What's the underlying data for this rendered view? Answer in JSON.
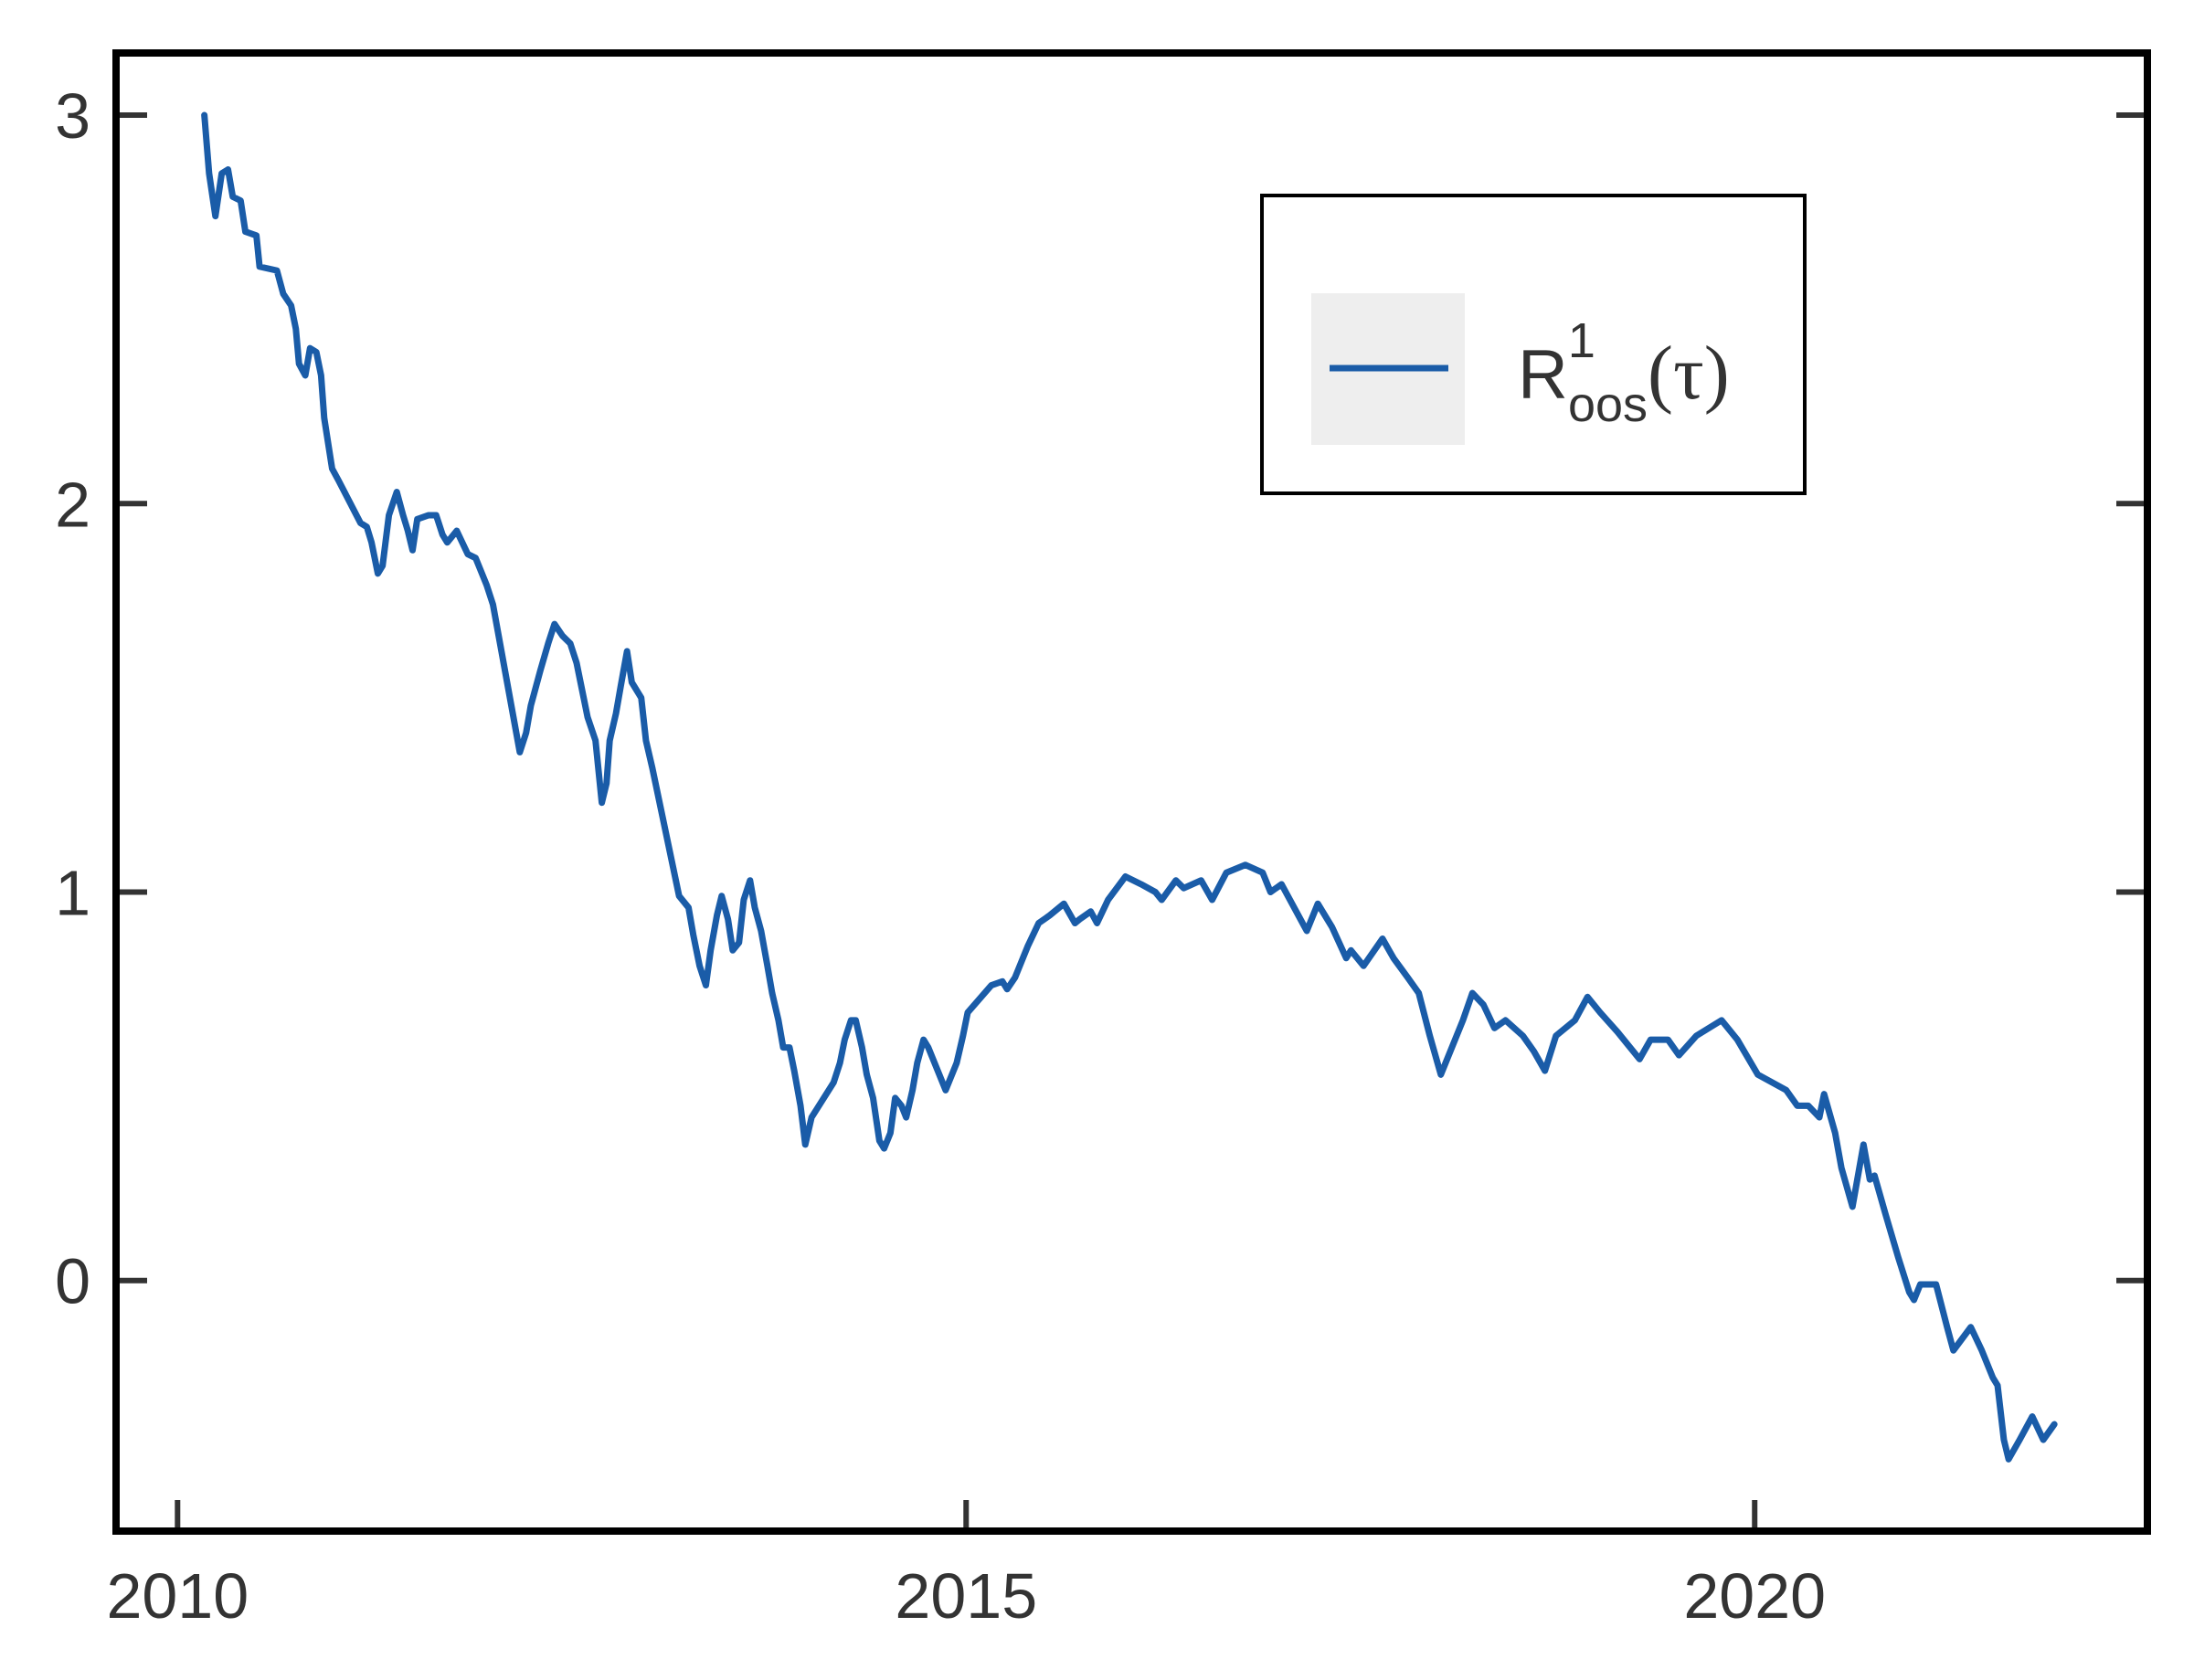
{
  "chart_data": {
    "type": "line",
    "x": [
      2010.17,
      2010.2,
      2010.24,
      2010.28,
      2010.32,
      2010.35,
      2010.4,
      2010.43,
      2010.5,
      2010.52,
      2010.63,
      2010.67,
      2010.72,
      2010.75,
      2010.77,
      2010.81,
      2010.84,
      2010.88,
      2010.91,
      2010.93,
      2010.98,
      2011.02,
      2011.16,
      2011.2,
      2011.23,
      2011.27,
      2011.3,
      2011.34,
      2011.39,
      2011.43,
      2011.46,
      2011.49,
      2011.52,
      2011.59,
      2011.64,
      2011.68,
      2011.71,
      2011.77,
      2011.84,
      2011.89,
      2011.93,
      2011.96,
      2012.0,
      2012.17,
      2012.21,
      2012.24,
      2012.3,
      2012.35,
      2012.39,
      2012.44,
      2012.49,
      2012.53,
      2012.56,
      2012.6,
      2012.65,
      2012.69,
      2012.72,
      2012.74,
      2012.78,
      2012.81,
      2012.85,
      2012.88,
      2012.94,
      2012.97,
      2013.01,
      2013.18,
      2013.24,
      2013.27,
      2013.31,
      2013.35,
      2013.38,
      2013.42,
      2013.45,
      2013.49,
      2013.52,
      2013.56,
      2013.59,
      2013.63,
      2013.66,
      2013.7,
      2013.74,
      2013.77,
      2013.81,
      2013.84,
      2013.88,
      2013.91,
      2013.95,
      2013.98,
      2014.02,
      2014.16,
      2014.2,
      2014.23,
      2014.27,
      2014.3,
      2014.34,
      2014.37,
      2014.41,
      2014.45,
      2014.48,
      2014.52,
      2014.55,
      2014.59,
      2014.62,
      2014.66,
      2014.69,
      2014.73,
      2014.76,
      2014.83,
      2014.87,
      2014.91,
      2014.94,
      2014.98,
      2015.01,
      2015.16,
      2015.23,
      2015.26,
      2015.31,
      2015.39,
      2015.46,
      2015.53,
      2015.62,
      2015.69,
      2015.72,
      2015.79,
      2015.83,
      2015.9,
      2016.01,
      2016.11,
      2016.2,
      2016.24,
      2016.33,
      2016.38,
      2016.49,
      2016.56,
      2016.65,
      2016.77,
      2016.88,
      2016.93,
      2017.0,
      2017.16,
      2017.23,
      2017.32,
      2017.41,
      2017.44,
      2017.52,
      2017.64,
      2017.71,
      2017.8,
      2017.87,
      2017.94,
      2018.01,
      2018.15,
      2018.21,
      2018.28,
      2018.35,
      2018.42,
      2018.53,
      2018.6,
      2018.67,
      2018.74,
      2018.86,
      2018.94,
      2019.02,
      2019.13,
      2019.27,
      2019.34,
      2019.45,
      2019.52,
      2019.63,
      2019.79,
      2019.89,
      2020.02,
      2020.2,
      2020.27,
      2020.34,
      2020.41,
      2020.44,
      2020.51,
      2020.55,
      2020.62,
      2020.69,
      2020.73,
      2020.76,
      2020.83,
      2020.91,
      2020.98,
      2021.01,
      2021.05,
      2021.15,
      2021.22,
      2021.26,
      2021.37,
      2021.44,
      2021.51,
      2021.54,
      2021.58,
      2021.61,
      2021.68,
      2021.76,
      2021.83,
      2021.9
    ],
    "series": [
      {
        "name": "R1oos(τ)",
        "color": "#1a5ca8",
        "values": [
          3.0,
          2.85,
          2.74,
          2.85,
          2.86,
          2.79,
          2.78,
          2.7,
          2.69,
          2.61,
          2.6,
          2.54,
          2.51,
          2.45,
          2.36,
          2.33,
          2.4,
          2.39,
          2.33,
          2.22,
          2.09,
          2.06,
          1.95,
          1.94,
          1.9,
          1.82,
          1.84,
          1.97,
          2.03,
          1.97,
          1.93,
          1.88,
          1.96,
          1.97,
          1.97,
          1.92,
          1.9,
          1.93,
          1.87,
          1.86,
          1.82,
          1.79,
          1.74,
          1.36,
          1.41,
          1.48,
          1.57,
          1.64,
          1.69,
          1.66,
          1.64,
          1.59,
          1.53,
          1.45,
          1.39,
          1.23,
          1.28,
          1.39,
          1.46,
          1.53,
          1.62,
          1.54,
          1.5,
          1.39,
          1.32,
          0.99,
          0.96,
          0.89,
          0.81,
          0.76,
          0.85,
          0.94,
          0.99,
          0.93,
          0.85,
          0.87,
          0.98,
          1.03,
          0.96,
          0.9,
          0.81,
          0.74,
          0.67,
          0.6,
          0.6,
          0.54,
          0.45,
          0.35,
          0.42,
          0.51,
          0.56,
          0.62,
          0.67,
          0.67,
          0.6,
          0.53,
          0.47,
          0.36,
          0.34,
          0.38,
          0.47,
          0.45,
          0.42,
          0.49,
          0.56,
          0.62,
          0.6,
          0.53,
          0.49,
          0.53,
          0.56,
          0.63,
          0.69,
          0.76,
          0.77,
          0.75,
          0.78,
          0.86,
          0.92,
          0.94,
          0.97,
          0.92,
          0.93,
          0.95,
          0.92,
          0.98,
          1.04,
          1.02,
          1.0,
          0.98,
          1.03,
          1.01,
          1.03,
          0.98,
          1.05,
          1.07,
          1.05,
          1.0,
          1.02,
          0.9,
          0.97,
          0.91,
          0.83,
          0.85,
          0.81,
          0.88,
          0.83,
          0.78,
          0.74,
          0.63,
          0.53,
          0.67,
          0.74,
          0.71,
          0.65,
          0.67,
          0.63,
          0.59,
          0.54,
          0.63,
          0.67,
          0.73,
          0.69,
          0.64,
          0.57,
          0.62,
          0.62,
          0.58,
          0.63,
          0.67,
          0.62,
          0.53,
          0.49,
          0.45,
          0.45,
          0.42,
          0.48,
          0.38,
          0.29,
          0.19,
          0.35,
          0.26,
          0.27,
          0.17,
          0.06,
          -0.03,
          -0.05,
          -0.01,
          -0.01,
          -0.12,
          -0.18,
          -0.12,
          -0.18,
          -0.25,
          -0.27,
          -0.41,
          -0.46,
          -0.41,
          -0.35,
          -0.41,
          -0.37
        ]
      }
    ],
    "xlim": [
      2009.61,
      2022.49
    ],
    "ylim": [
      -0.645,
      3.16
    ],
    "xticks": [
      2010,
      2015,
      2020
    ],
    "yticks": [
      0,
      1,
      2,
      3
    ],
    "grid": false,
    "legend": "upper right"
  }
}
